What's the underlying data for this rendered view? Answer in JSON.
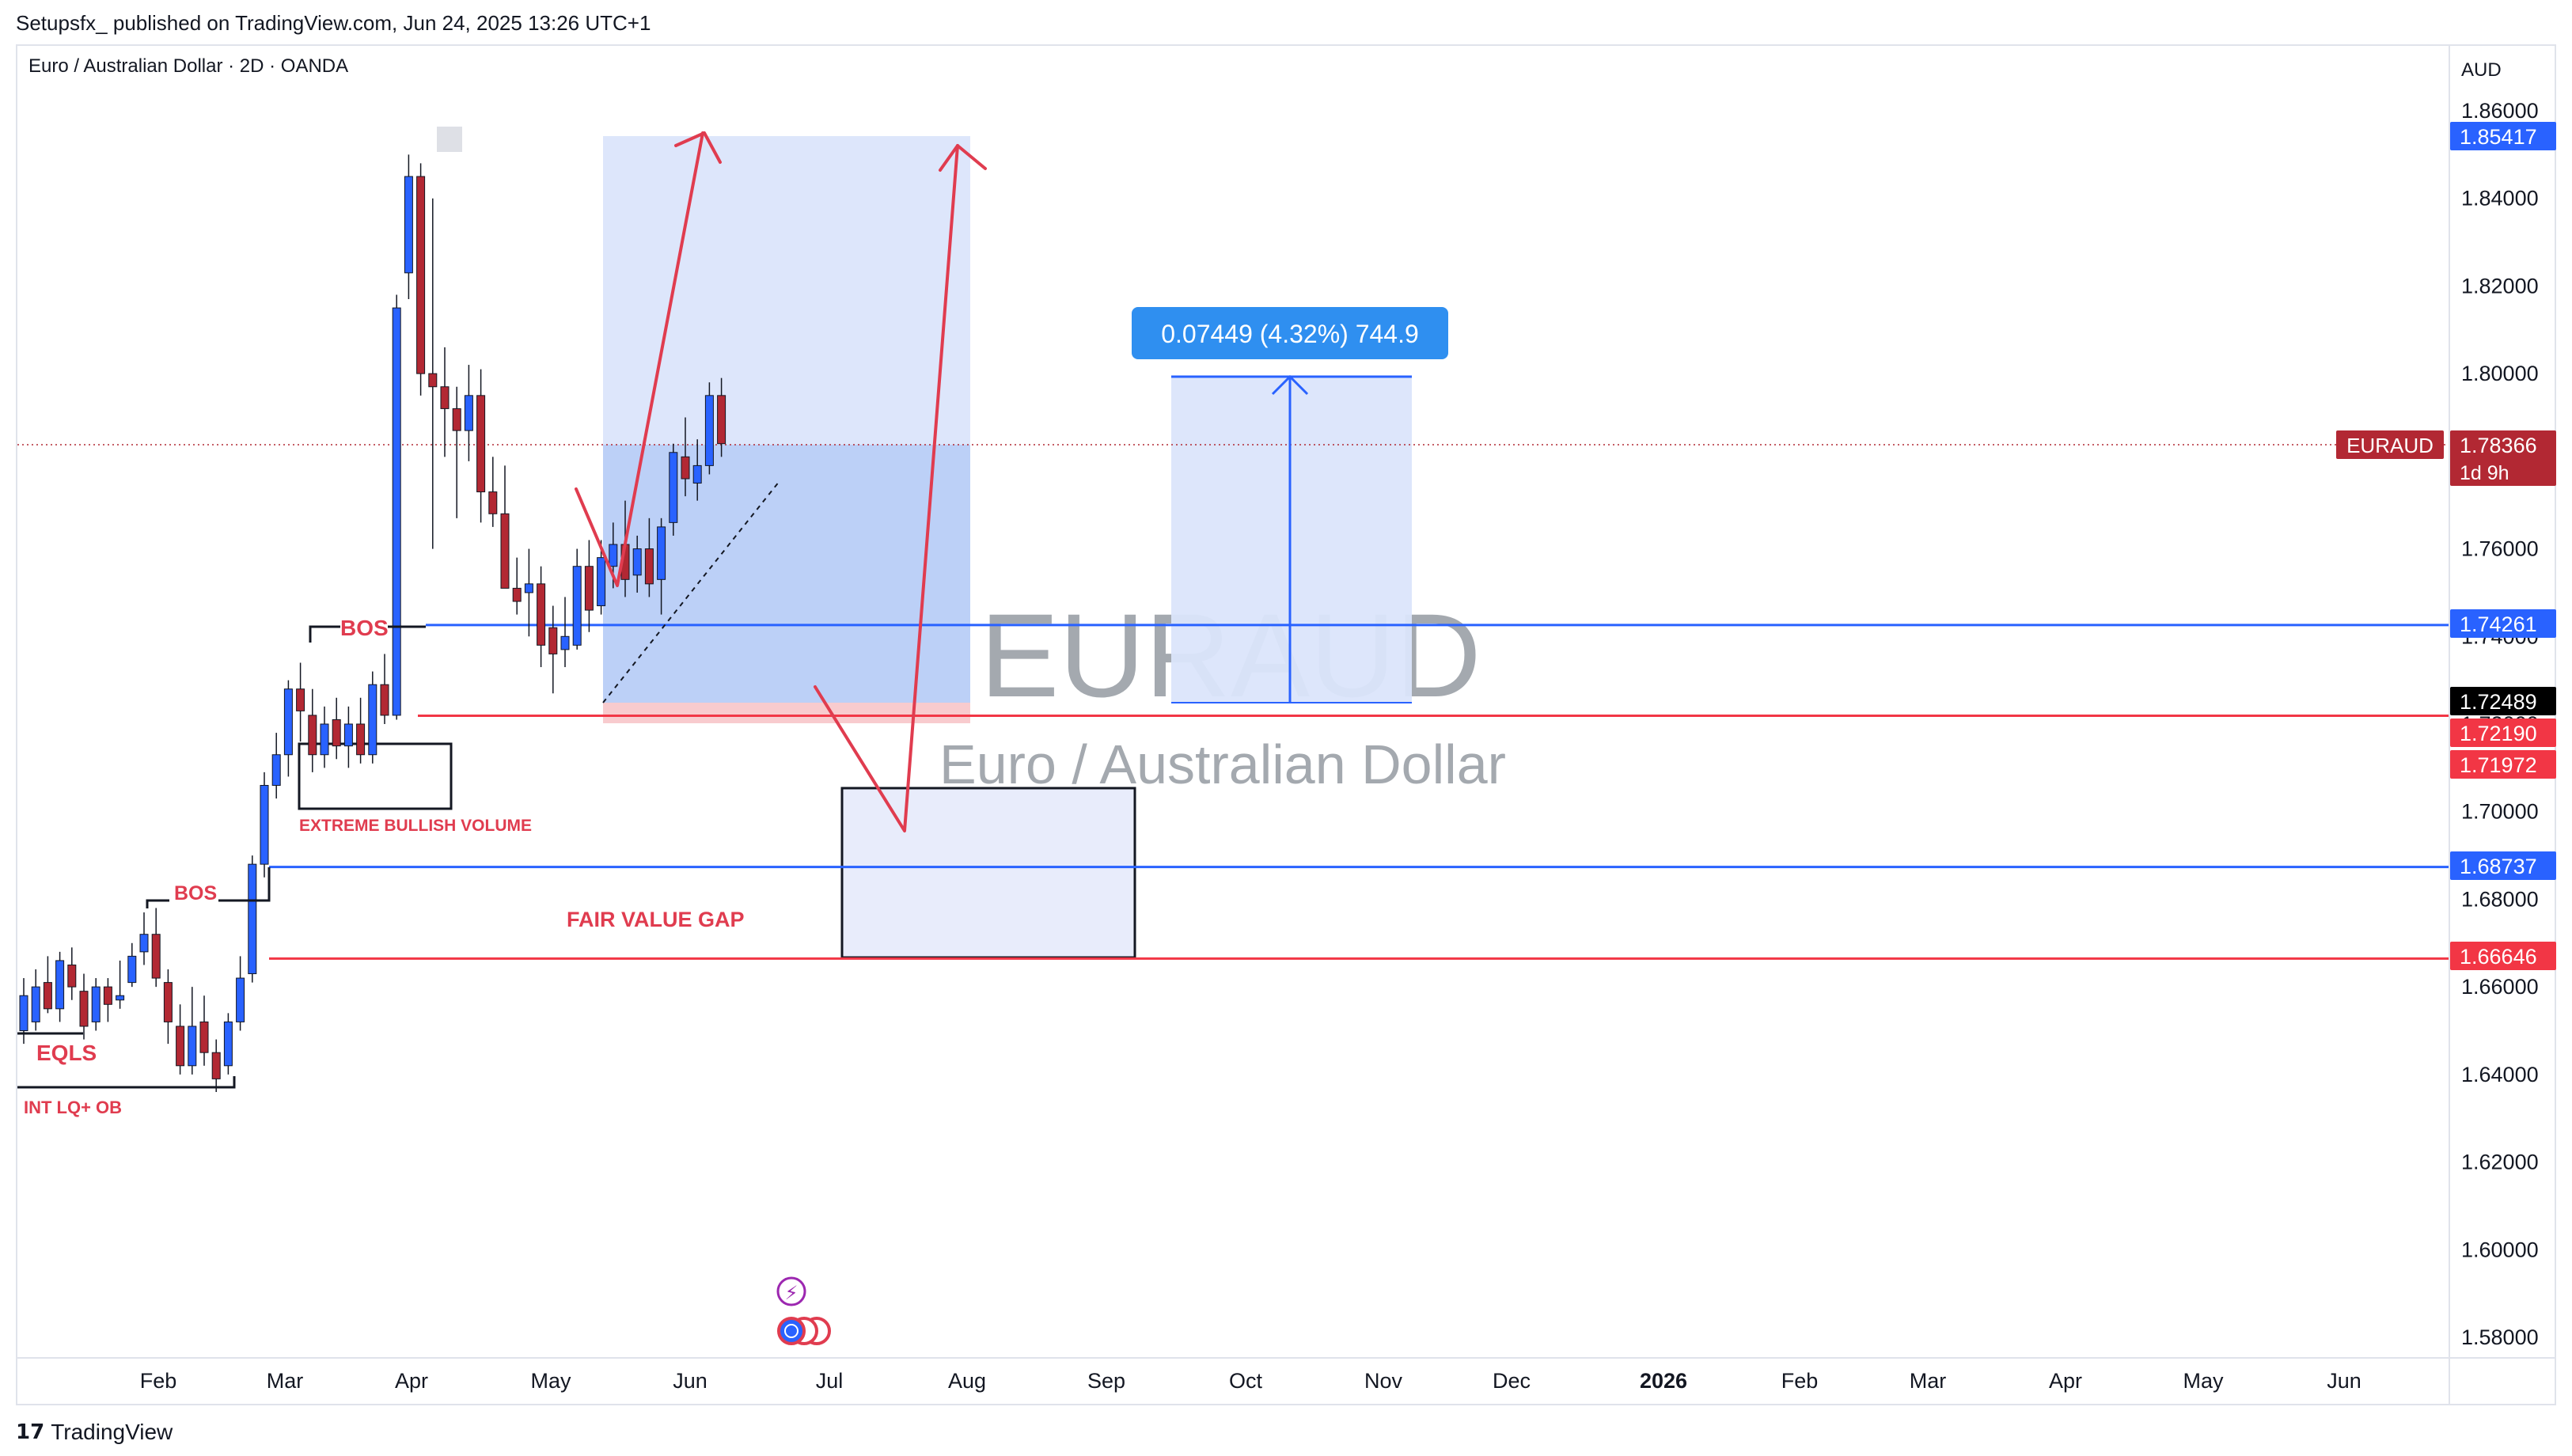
{
  "header": {
    "credit": "Setupsfx_ published on TradingView.com, Jun 24, 2025 13:26 UTC+1",
    "symbol_line": "Euro / Australian Dollar · 2D · OANDA",
    "currency": "AUD"
  },
  "footer": {
    "brand": "TradingView",
    "brand_mark": "17"
  },
  "watermark": {
    "ticker": "EURAUD",
    "name": "Euro / Australian Dollar"
  },
  "colors": {
    "bull": "#2962ff",
    "bear": "#b22833",
    "red_line": "#f23645",
    "blue_line": "#2962ff",
    "annotation": "#e03c4f",
    "zone_fill": "#dbe5fb",
    "zone_fill_dark": "#b5cbf6"
  },
  "measure_label": "0.07449 (4.32%) 744.9",
  "annotations": {
    "bos_upper": "BOS",
    "bos_lower": "BOS",
    "extreme_volume": "EXTREME BULLISH VOLUME",
    "fair_value_gap": "FAIR VALUE GAP",
    "eqls": "EQLS",
    "int_lq_ob": "INT LQ+ OB"
  },
  "chart_data": {
    "type": "candlestick",
    "title": "Euro / Australian Dollar · 2D · OANDA",
    "ylabel": "AUD",
    "ylim": [
      1.57,
      1.87
    ],
    "y_ticks": [
      "1.86000",
      "1.84000",
      "1.82000",
      "1.80000",
      "1.78000",
      "1.76000",
      "1.74000",
      "1.72000",
      "1.70000",
      "1.68000",
      "1.66000",
      "1.64000",
      "1.62000",
      "1.60000",
      "1.58000"
    ],
    "x_ticks": [
      "Feb",
      "Mar",
      "Apr",
      "May",
      "Jun",
      "Jul",
      "Aug",
      "Sep",
      "Oct",
      "Nov",
      "Dec",
      "2026",
      "Feb",
      "Mar",
      "Apr",
      "May",
      "Jun"
    ],
    "price_tags": [
      {
        "value": "1.85417",
        "color": "#2962ff",
        "text_color": "#ffffff"
      },
      {
        "value": "1.78366",
        "color": "#b22833",
        "text_color": "#ffffff",
        "label": "EURAUD",
        "sub": "1d 9h"
      },
      {
        "value": "1.74261",
        "color": "#2962ff",
        "text_color": "#ffffff"
      },
      {
        "value": "1.72489",
        "color": "#000000",
        "text_color": "#ffffff"
      },
      {
        "value": "1.72190",
        "color": "#f23645",
        "text_color": "#ffffff"
      },
      {
        "value": "1.71972",
        "color": "#f23645",
        "text_color": "#ffffff"
      },
      {
        "value": "1.68737",
        "color": "#2962ff",
        "text_color": "#ffffff"
      },
      {
        "value": "1.66646",
        "color": "#f23645",
        "text_color": "#ffffff"
      }
    ],
    "horizontal_levels": [
      {
        "price": 1.74261,
        "color": "#2962ff"
      },
      {
        "price": 1.7219,
        "color": "#f23645"
      },
      {
        "price": 1.68737,
        "color": "#2962ff"
      },
      {
        "price": 1.66646,
        "color": "#f23645"
      }
    ],
    "candles": [
      {
        "o": 1.65,
        "h": 1.662,
        "l": 1.647,
        "c": 1.658
      },
      {
        "o": 1.652,
        "h": 1.664,
        "l": 1.65,
        "c": 1.66
      },
      {
        "o": 1.661,
        "h": 1.667,
        "l": 1.654,
        "c": 1.655
      },
      {
        "o": 1.655,
        "h": 1.668,
        "l": 1.652,
        "c": 1.666
      },
      {
        "o": 1.665,
        "h": 1.669,
        "l": 1.657,
        "c": 1.66
      },
      {
        "o": 1.659,
        "h": 1.663,
        "l": 1.648,
        "c": 1.651
      },
      {
        "o": 1.652,
        "h": 1.662,
        "l": 1.65,
        "c": 1.66
      },
      {
        "o": 1.66,
        "h": 1.662,
        "l": 1.652,
        "c": 1.656
      },
      {
        "o": 1.657,
        "h": 1.666,
        "l": 1.655,
        "c": 1.658
      },
      {
        "o": 1.661,
        "h": 1.67,
        "l": 1.66,
        "c": 1.667
      },
      {
        "o": 1.668,
        "h": 1.677,
        "l": 1.665,
        "c": 1.672
      },
      {
        "o": 1.672,
        "h": 1.678,
        "l": 1.66,
        "c": 1.662
      },
      {
        "o": 1.661,
        "h": 1.664,
        "l": 1.647,
        "c": 1.652
      },
      {
        "o": 1.651,
        "h": 1.656,
        "l": 1.64,
        "c": 1.642
      },
      {
        "o": 1.642,
        "h": 1.66,
        "l": 1.64,
        "c": 1.651
      },
      {
        "o": 1.652,
        "h": 1.658,
        "l": 1.642,
        "c": 1.645
      },
      {
        "o": 1.645,
        "h": 1.648,
        "l": 1.636,
        "c": 1.639
      },
      {
        "o": 1.642,
        "h": 1.654,
        "l": 1.64,
        "c": 1.652
      },
      {
        "o": 1.652,
        "h": 1.667,
        "l": 1.65,
        "c": 1.662
      },
      {
        "o": 1.663,
        "h": 1.69,
        "l": 1.661,
        "c": 1.688
      },
      {
        "o": 1.688,
        "h": 1.709,
        "l": 1.685,
        "c": 1.706
      },
      {
        "o": 1.706,
        "h": 1.718,
        "l": 1.703,
        "c": 1.713
      },
      {
        "o": 1.713,
        "h": 1.73,
        "l": 1.708,
        "c": 1.728
      },
      {
        "o": 1.728,
        "h": 1.734,
        "l": 1.716,
        "c": 1.723
      },
      {
        "o": 1.722,
        "h": 1.728,
        "l": 1.709,
        "c": 1.713
      },
      {
        "o": 1.713,
        "h": 1.724,
        "l": 1.71,
        "c": 1.72
      },
      {
        "o": 1.721,
        "h": 1.726,
        "l": 1.712,
        "c": 1.715
      },
      {
        "o": 1.715,
        "h": 1.724,
        "l": 1.71,
        "c": 1.72
      },
      {
        "o": 1.72,
        "h": 1.726,
        "l": 1.711,
        "c": 1.713
      },
      {
        "o": 1.713,
        "h": 1.732,
        "l": 1.711,
        "c": 1.729
      },
      {
        "o": 1.729,
        "h": 1.736,
        "l": 1.72,
        "c": 1.722
      },
      {
        "o": 1.722,
        "h": 1.818,
        "l": 1.721,
        "c": 1.815
      },
      {
        "o": 1.823,
        "h": 1.85,
        "l": 1.817,
        "c": 1.845
      },
      {
        "o": 1.845,
        "h": 1.848,
        "l": 1.795,
        "c": 1.8
      },
      {
        "o": 1.8,
        "h": 1.84,
        "l": 1.76,
        "c": 1.797
      },
      {
        "o": 1.797,
        "h": 1.806,
        "l": 1.781,
        "c": 1.792
      },
      {
        "o": 1.792,
        "h": 1.797,
        "l": 1.767,
        "c": 1.787
      },
      {
        "o": 1.787,
        "h": 1.802,
        "l": 1.78,
        "c": 1.795
      },
      {
        "o": 1.795,
        "h": 1.801,
        "l": 1.766,
        "c": 1.773
      },
      {
        "o": 1.773,
        "h": 1.781,
        "l": 1.765,
        "c": 1.768
      },
      {
        "o": 1.768,
        "h": 1.779,
        "l": 1.751,
        "c": 1.751
      },
      {
        "o": 1.751,
        "h": 1.758,
        "l": 1.745,
        "c": 1.748
      },
      {
        "o": 1.75,
        "h": 1.76,
        "l": 1.74,
        "c": 1.752
      },
      {
        "o": 1.752,
        "h": 1.756,
        "l": 1.733,
        "c": 1.738
      },
      {
        "o": 1.742,
        "h": 1.747,
        "l": 1.727,
        "c": 1.736
      },
      {
        "o": 1.737,
        "h": 1.749,
        "l": 1.733,
        "c": 1.74
      },
      {
        "o": 1.738,
        "h": 1.76,
        "l": 1.737,
        "c": 1.756
      },
      {
        "o": 1.756,
        "h": 1.762,
        "l": 1.741,
        "c": 1.746
      },
      {
        "o": 1.747,
        "h": 1.762,
        "l": 1.745,
        "c": 1.758
      },
      {
        "o": 1.756,
        "h": 1.766,
        "l": 1.751,
        "c": 1.761
      },
      {
        "o": 1.761,
        "h": 1.771,
        "l": 1.749,
        "c": 1.753
      },
      {
        "o": 1.754,
        "h": 1.763,
        "l": 1.75,
        "c": 1.76
      },
      {
        "o": 1.76,
        "h": 1.767,
        "l": 1.749,
        "c": 1.752
      },
      {
        "o": 1.753,
        "h": 1.767,
        "l": 1.745,
        "c": 1.765
      },
      {
        "o": 1.766,
        "h": 1.784,
        "l": 1.763,
        "c": 1.782
      },
      {
        "o": 1.781,
        "h": 1.79,
        "l": 1.772,
        "c": 1.776
      },
      {
        "o": 1.775,
        "h": 1.785,
        "l": 1.771,
        "c": 1.779
      },
      {
        "o": 1.779,
        "h": 1.798,
        "l": 1.777,
        "c": 1.795
      },
      {
        "o": 1.795,
        "h": 1.799,
        "l": 1.781,
        "c": 1.784
      }
    ]
  }
}
